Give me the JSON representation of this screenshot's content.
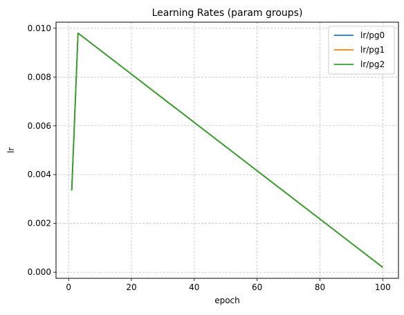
{
  "chart_data": {
    "type": "line",
    "title": "Learning Rates (param groups)",
    "xlabel": "epoch",
    "ylabel": "lr",
    "xlim": [
      -4.0,
      105.0
    ],
    "ylim": [
      -0.00025,
      0.01025
    ],
    "xticks": [
      0,
      20,
      40,
      60,
      80,
      100
    ],
    "xtick_labels": [
      "0",
      "20",
      "40",
      "60",
      "80",
      "100"
    ],
    "yticks": [
      0.0,
      0.002,
      0.004,
      0.006,
      0.008,
      0.01
    ],
    "ytick_labels": [
      "0.000",
      "0.002",
      "0.004",
      "0.006",
      "0.008",
      "0.010"
    ],
    "grid": true,
    "legend_position": "top-right",
    "series": [
      {
        "name": "lr/pg0",
        "color": "#1f77b4",
        "points": [
          [
            1,
            0.00335
          ],
          [
            3,
            0.0098
          ],
          [
            100,
            0.0002
          ]
        ]
      },
      {
        "name": "lr/pg1",
        "color": "#ff7f0e",
        "points": [
          [
            1,
            0.00335
          ],
          [
            3,
            0.0098
          ],
          [
            100,
            0.0002
          ]
        ]
      },
      {
        "name": "lr/pg2",
        "color": "#2ca02c",
        "points": [
          [
            1,
            0.00335
          ],
          [
            3,
            0.0098
          ],
          [
            100,
            0.0002
          ]
        ]
      }
    ]
  }
}
